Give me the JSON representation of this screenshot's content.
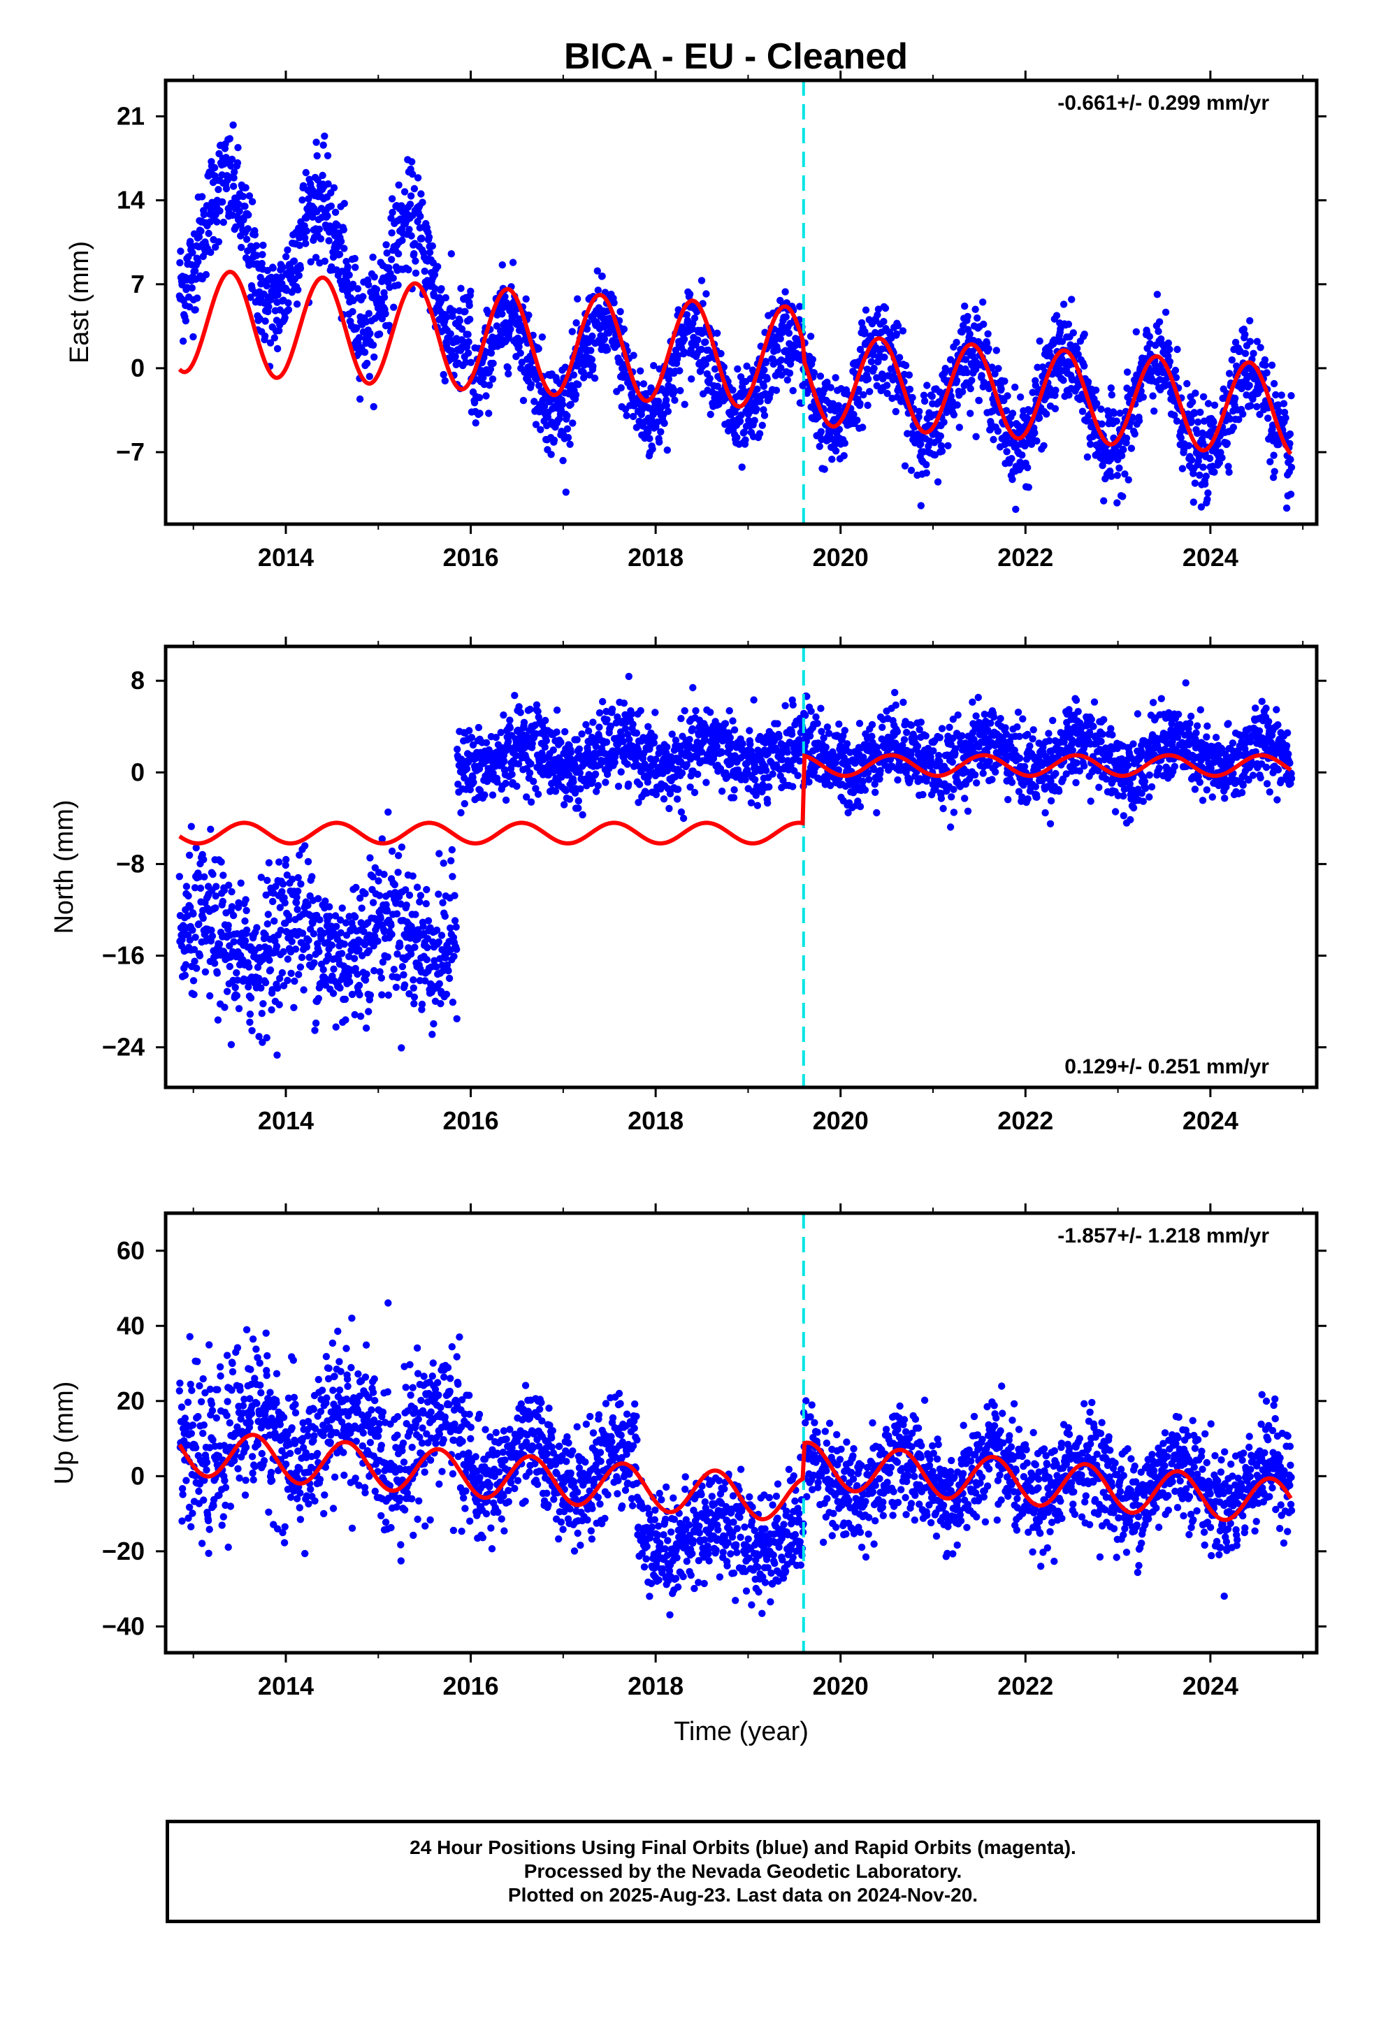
{
  "title": "BICA  - EU - Cleaned",
  "colors": {
    "data": "#0000ff",
    "model": "#ff0000",
    "event": "#00e5e5",
    "frame": "#000000"
  },
  "xaxis": {
    "label": "Time (year)",
    "range": [
      2012.7,
      2025.15
    ],
    "ticks": [
      2014,
      2016,
      2018,
      2020,
      2022,
      2024
    ]
  },
  "event_year": 2019.6,
  "chart_data": [
    {
      "type": "scatter",
      "name": "east",
      "ylabel": "East (mm)",
      "ylim": [
        -13,
        24
      ],
      "yticks": [
        -7,
        0,
        7,
        14,
        21
      ],
      "rate_text": "-0.661+/- 0.299 mm/yr",
      "rate_position": "top-right",
      "data_series": {
        "name": "",
        "x_start": 2012.85,
        "x_end": 2024.88,
        "step": 0.004,
        "segments": [
          {
            "from": 2012.85,
            "to": 2016.0,
            "offset": 11.5,
            "trend": -1.6,
            "amp": 4.8,
            "phase": 0.35,
            "noise": 2.2
          },
          {
            "from": 2016.0,
            "to": 2025.0,
            "offset": 0.8,
            "trend": -0.55,
            "amp": 3.8,
            "phase": 0.42,
            "noise": 1.9
          }
        ]
      },
      "model_series": {
        "name": "",
        "x_start": 2012.85,
        "x_end": 2024.88,
        "step": 0.02,
        "segments": [
          {
            "from": 2012.85,
            "to": 2019.6,
            "offset": 4.0,
            "trend": -0.48,
            "amp": 4.3,
            "phase": 0.4
          },
          {
            "from": 2019.6,
            "to": 2025.0,
            "offset": -0.9,
            "trend": -0.5,
            "amp": 3.8,
            "phase": 0.42
          }
        ]
      }
    },
    {
      "type": "scatter",
      "name": "north",
      "ylabel": "North (mm)",
      "ylim": [
        -27.5,
        11
      ],
      "yticks": [
        -24,
        -16,
        -8,
        0,
        8
      ],
      "rate_text": "0.129+/- 0.251 mm/yr",
      "rate_position": "bottom-right",
      "data_series": {
        "name": "",
        "x_start": 2012.85,
        "x_end": 2024.88,
        "step": 0.004,
        "segments": [
          {
            "from": 2012.85,
            "to": 2015.85,
            "offset": -15.0,
            "trend": 0.3,
            "amp": 1.8,
            "phase": 0.1,
            "noise": 3.2
          },
          {
            "from": 2015.85,
            "to": 2025.0,
            "offset": 1.4,
            "trend": 0.0,
            "amp": 1.2,
            "phase": 0.6,
            "noise": 1.7
          }
        ]
      },
      "model_series": {
        "name": "",
        "x_start": 2012.85,
        "x_end": 2024.88,
        "step": 0.02,
        "segments": [
          {
            "from": 2012.85,
            "to": 2019.6,
            "offset": -5.3,
            "trend": 0.0,
            "amp": 0.9,
            "phase": 0.55
          },
          {
            "from": 2019.6,
            "to": 2025.0,
            "offset": 0.6,
            "trend": 0.0,
            "amp": 0.9,
            "phase": 0.55
          }
        ]
      }
    },
    {
      "type": "scatter",
      "name": "up",
      "ylabel": "Up (mm)",
      "ylim": [
        -47,
        70
      ],
      "yticks": [
        -40,
        -20,
        0,
        20,
        40,
        60
      ],
      "rate_text": "-1.857+/- 1.218 mm/yr",
      "rate_position": "top-right",
      "data_series": {
        "name": "",
        "x_start": 2012.85,
        "x_end": 2024.88,
        "step": 0.004,
        "segments": [
          {
            "from": 2012.85,
            "to": 2016.0,
            "offset": 10.0,
            "trend": 0.0,
            "amp": 7.0,
            "phase": 0.65,
            "noise": 10.0
          },
          {
            "from": 2016.0,
            "to": 2017.8,
            "offset": 3.0,
            "trend": -1.0,
            "amp": 6.0,
            "phase": 0.65,
            "noise": 7.0
          },
          {
            "from": 2017.8,
            "to": 2019.6,
            "offset": -15.0,
            "trend": 0.0,
            "amp": 4.0,
            "phase": 0.65,
            "noise": 7.0
          },
          {
            "from": 2019.6,
            "to": 2025.0,
            "offset": 0.0,
            "trend": -0.5,
            "amp": 6.0,
            "phase": 0.65,
            "noise": 7.0
          }
        ]
      },
      "model_series": {
        "name": "",
        "x_start": 2012.85,
        "x_end": 2024.88,
        "step": 0.02,
        "segments": [
          {
            "from": 2012.85,
            "to": 2019.6,
            "offset": 6.5,
            "trend": -1.9,
            "amp": 6.0,
            "phase": 0.65
          },
          {
            "from": 2019.6,
            "to": 2025.0,
            "offset": 3.0,
            "trend": -1.9,
            "amp": 6.0,
            "phase": 0.65
          }
        ]
      }
    }
  ],
  "caption": [
    "24 Hour Positions Using Final Orbits (blue) and Rapid Orbits (magenta).",
    "Processed by the Nevada Geodetic Laboratory.",
    "Plotted on 2025-Aug-23. Last data on 2024-Nov-20."
  ]
}
